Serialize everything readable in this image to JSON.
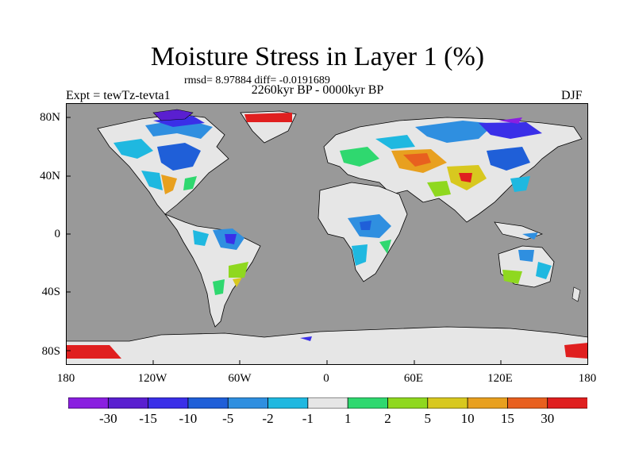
{
  "title": "Moisture Stress in Layer 1 (%)",
  "stats_text": "rmsd= 8.97884 diff= -0.0191689",
  "period_text": "2260kyr BP - 0000kyr BP",
  "experiment_label": "Expt = tewTz-tevta1",
  "season_label": "DJF",
  "map": {
    "projection": "cylindrical equidistant",
    "lon_range": [
      -180,
      180
    ],
    "lat_range": [
      -90,
      90
    ],
    "ocean_color": "#999999",
    "land_default_color": "#e6e6e6",
    "latitude_tick_labels": [
      "80N",
      "40N",
      "0",
      "40S",
      "80S"
    ],
    "longitude_tick_labels": [
      "180",
      "120W",
      "60W",
      "0",
      "60E",
      "120E",
      "180"
    ]
  },
  "colorbar": {
    "colors": [
      "#8a1fe0",
      "#5a1fd0",
      "#3a2fe8",
      "#1f5fd8",
      "#2f8fe0",
      "#1fb8e0",
      "#e6e6e6",
      "#2fd86f",
      "#8fd81f",
      "#d8c81f",
      "#e8a01f",
      "#e8601f",
      "#e01f1f"
    ],
    "labels": [
      "-30",
      "-15",
      "-10",
      "-5",
      "-2",
      "-1",
      "1",
      "2",
      "5",
      "10",
      "15",
      "30"
    ]
  }
}
